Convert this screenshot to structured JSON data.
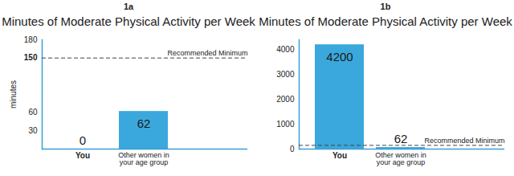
{
  "chart_data": [
    {
      "type": "bar",
      "panel_label": "1a",
      "title": "Minutes of Moderate Physical Activity per Week",
      "ylabel": "minutes",
      "categories": [
        "You",
        "Other women in your age group"
      ],
      "values": [
        0,
        62
      ],
      "color": "#3aa8dc",
      "ylim": [
        0,
        180
      ],
      "yticks": [
        30,
        60,
        150,
        180
      ],
      "data_labels": true,
      "annotations": [
        {
          "text": "Recommended Minimum",
          "y": 150,
          "line_style": "dashed"
        }
      ]
    },
    {
      "type": "bar",
      "panel_label": "1b",
      "title": "Minutes of Moderate Physical Activity per Week",
      "categories": [
        "You",
        "Other women in your age group"
      ],
      "values": [
        4200,
        62
      ],
      "color": "#3aa8dc",
      "ylim": [
        0,
        4400
      ],
      "yticks": [
        0,
        1000,
        2000,
        3000,
        4000
      ],
      "data_labels": true,
      "annotations": [
        {
          "text": "Recommended Minimum",
          "y": 150,
          "line_style": "dashed"
        }
      ]
    }
  ]
}
